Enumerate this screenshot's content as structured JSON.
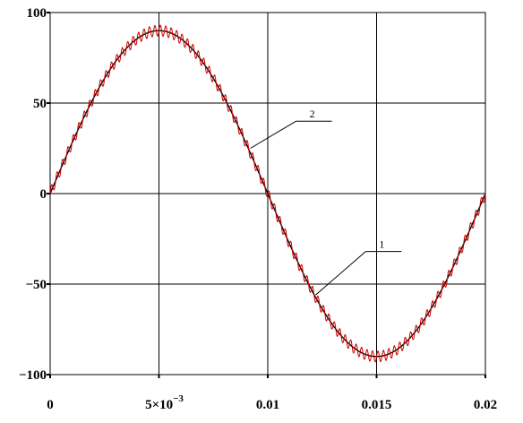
{
  "chart_data": {
    "type": "line",
    "xlim": [
      0,
      0.02
    ],
    "ylim": [
      -100,
      100
    ],
    "grid": true,
    "x_ticks": [
      {
        "value": 0,
        "label": "0",
        "exp": ""
      },
      {
        "value": 0.005,
        "label": "5×10",
        "exp": "−3"
      },
      {
        "value": 0.01,
        "label": "0.01",
        "exp": ""
      },
      {
        "value": 0.015,
        "label": "0.015",
        "exp": ""
      },
      {
        "value": 0.02,
        "label": "0.02",
        "exp": ""
      }
    ],
    "y_ticks": [
      {
        "value": 100,
        "label": "100"
      },
      {
        "value": 50,
        "label": "50"
      },
      {
        "value": 0,
        "label": "0"
      },
      {
        "value": -50,
        "label": "−50"
      },
      {
        "value": -100,
        "label": "−100"
      }
    ],
    "series": [
      {
        "label": "1",
        "color": "#000000",
        "shape": "sine",
        "amplitude": 90,
        "frequency_hz": 50,
        "ripple_amplitude": 0,
        "ripple_frequency_hz": 0,
        "annotation": {
          "x": 0.0122,
          "y": -56,
          "label_x": 0.0145,
          "label_y": -32
        }
      },
      {
        "label": "2",
        "color": "#cc0000",
        "shape": "sine_with_ripple",
        "amplitude": 90,
        "frequency_hz": 50,
        "ripple_amplitude": 3,
        "ripple_frequency_hz": 4000,
        "annotation": {
          "x": 0.0092,
          "y": 25,
          "label_x": 0.0113,
          "label_y": 40
        }
      }
    ]
  }
}
